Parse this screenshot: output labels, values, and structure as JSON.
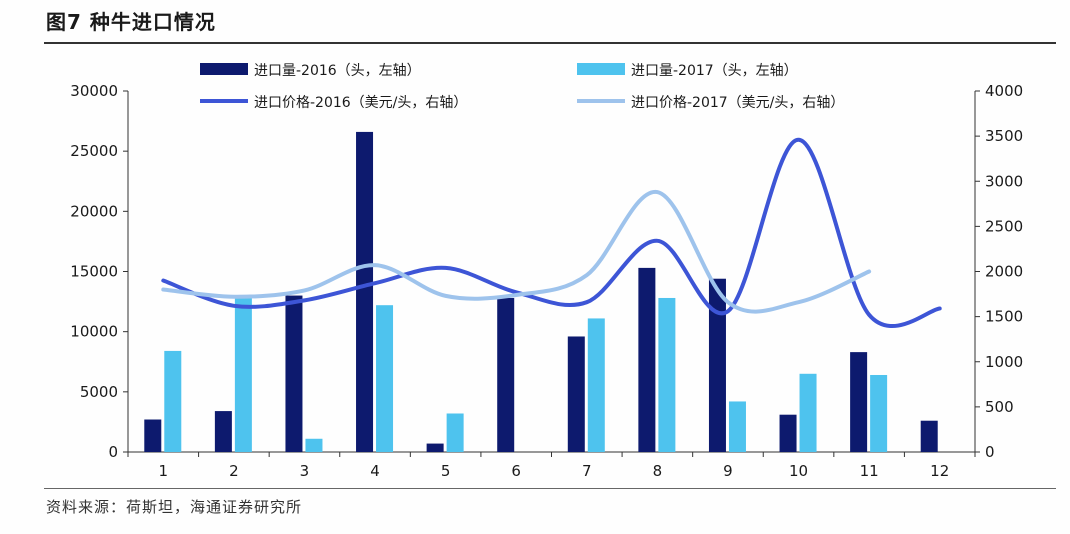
{
  "header": {
    "title": "图7  种牛进口情况"
  },
  "footer": {
    "source": "资料来源：荷斯坦，海通证券研究所"
  },
  "chart_data": {
    "type": "bar+line",
    "categories": [
      "1",
      "2",
      "3",
      "4",
      "5",
      "6",
      "7",
      "8",
      "9",
      "10",
      "11",
      "12"
    ],
    "bars": [
      {
        "name": "进口量-2016（头，左轴）",
        "color": "#0d1a6e",
        "values": [
          2700,
          3400,
          13000,
          26600,
          700,
          12800,
          9600,
          15300,
          14400,
          3100,
          8300,
          2600
        ]
      },
      {
        "name": "进口量-2017（头，左轴）",
        "color": "#4ec3ee",
        "values": [
          8400,
          12900,
          1100,
          12200,
          3200,
          null,
          11100,
          12800,
          4200,
          6500,
          6400,
          null
        ]
      }
    ],
    "lines": [
      {
        "name": "进口价格-2016（美元/头，右轴）",
        "color": "#3d55d6",
        "values": [
          1900,
          1620,
          1680,
          1870,
          2040,
          1770,
          1660,
          2340,
          1560,
          3460,
          1520,
          1590
        ]
      },
      {
        "name": "进口价格-2017（美元/头，右轴）",
        "color": "#9ec3ec",
        "values": [
          1800,
          1720,
          1790,
          2070,
          1730,
          1740,
          1960,
          2880,
          1660,
          1660,
          2000,
          null
        ]
      }
    ],
    "y_left": {
      "min": 0,
      "max": 30000,
      "ticks": [
        "0",
        "5000",
        "10000",
        "15000",
        "20000",
        "25000",
        "30000"
      ]
    },
    "y_right": {
      "min": 0,
      "max": 4000,
      "ticks": [
        "0",
        "500",
        "1000",
        "1500",
        "2000",
        "2500",
        "3000",
        "3500",
        "4000"
      ]
    },
    "legend_position": "top"
  }
}
